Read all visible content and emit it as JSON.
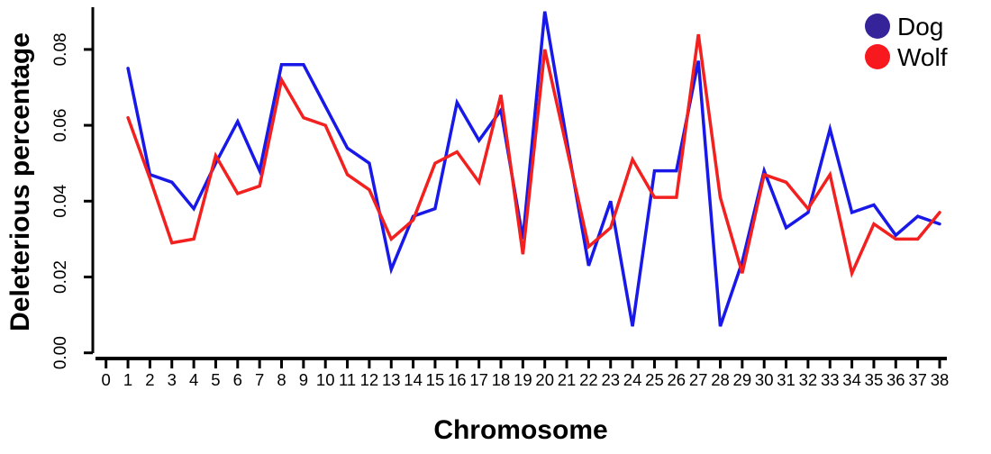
{
  "figure": {
    "y_axis_title": "Deleterious percentage",
    "x_axis_title": "Chromosome"
  },
  "legend": {
    "position": "top-right",
    "items": [
      {
        "label": "Dog",
        "marker": "circle-icon",
        "marker_color": "#342399",
        "line_color": "#1818e8"
      },
      {
        "label": "Wolf",
        "marker": "circle-icon",
        "marker_color": "#f8191f",
        "line_color": "#f2201f"
      }
    ]
  },
  "colors": {
    "axis": "#000000",
    "text": "#000000",
    "dog_line": "#1818e8",
    "wolf_line": "#f2201f"
  },
  "chart_data": {
    "type": "line",
    "title": "",
    "xlabel": "Chromosome",
    "ylabel": "Deleterious percentage",
    "grid": false,
    "legend_position": "top-right",
    "x_axis_ticks": [
      0,
      1,
      2,
      3,
      4,
      5,
      6,
      7,
      8,
      9,
      10,
      11,
      12,
      13,
      14,
      15,
      16,
      17,
      18,
      19,
      20,
      21,
      22,
      23,
      24,
      25,
      26,
      27,
      28,
      29,
      30,
      31,
      32,
      33,
      34,
      35,
      36,
      37,
      38
    ],
    "y_ticks": [
      0.0,
      0.02,
      0.04,
      0.06,
      0.08
    ],
    "ylim": [
      0.0,
      0.091
    ],
    "xlim": [
      0,
      38
    ],
    "x": [
      1,
      2,
      3,
      4,
      5,
      6,
      7,
      8,
      9,
      10,
      11,
      12,
      13,
      14,
      15,
      16,
      17,
      18,
      19,
      20,
      21,
      22,
      23,
      24,
      25,
      26,
      27,
      28,
      29,
      30,
      31,
      32,
      33,
      34,
      35,
      36,
      37,
      38
    ],
    "series": [
      {
        "name": "Dog",
        "color": "#1818e8",
        "values": [
          0.075,
          0.047,
          0.045,
          0.038,
          0.05,
          0.061,
          0.048,
          0.076,
          0.076,
          0.065,
          0.054,
          0.05,
          0.022,
          0.036,
          0.038,
          0.066,
          0.056,
          0.064,
          0.03,
          0.09,
          0.056,
          0.023,
          0.04,
          0.007,
          0.048,
          0.048,
          0.077,
          0.007,
          0.024,
          0.048,
          0.033,
          0.037,
          0.059,
          0.037,
          0.039,
          0.031,
          0.036,
          0.034
        ]
      },
      {
        "name": "Wolf",
        "color": "#f2201f",
        "values": [
          0.062,
          0.046,
          0.029,
          0.03,
          0.052,
          0.042,
          0.044,
          0.072,
          0.062,
          0.06,
          0.047,
          0.043,
          0.03,
          0.035,
          0.05,
          0.053,
          0.045,
          0.068,
          0.026,
          0.08,
          0.054,
          0.028,
          0.033,
          0.051,
          0.041,
          0.041,
          0.084,
          0.041,
          0.021,
          0.047,
          0.045,
          0.038,
          0.047,
          0.021,
          0.034,
          0.03,
          0.03,
          0.037
        ]
      }
    ]
  }
}
